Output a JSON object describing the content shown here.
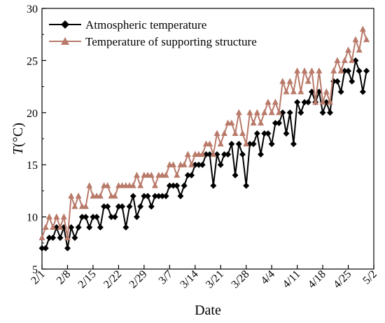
{
  "chart_data": {
    "type": "line",
    "xlabel": "Date",
    "ylabel_main": "T",
    "ylabel_unit": "(°C)",
    "ylim": [
      5,
      30
    ],
    "yticks": [
      "5",
      "10",
      "15",
      "20",
      "25",
      "30"
    ],
    "xlim": [
      "2/1",
      "5/2"
    ],
    "xticks": [
      "2/1",
      "2/8",
      "2/15",
      "2/22",
      "2/29",
      "3/7",
      "3/14",
      "3/21",
      "3/28",
      "4/4",
      "4/11",
      "4/18",
      "4/25",
      "5/2"
    ],
    "grid": false,
    "legend_position": "top-left",
    "series": [
      {
        "name": "Atmospheric temperature",
        "color": "#000000",
        "marker": "diamond",
        "x": [
          "2/1",
          "2/2",
          "2/3",
          "2/4",
          "2/5",
          "2/6",
          "2/7",
          "2/8",
          "2/9",
          "2/10",
          "2/11",
          "2/12",
          "2/13",
          "2/14",
          "2/15",
          "2/16",
          "2/17",
          "2/18",
          "2/19",
          "2/20",
          "2/21",
          "2/22",
          "2/23",
          "2/24",
          "2/25",
          "2/26",
          "2/27",
          "2/28",
          "2/29",
          "3/1",
          "3/2",
          "3/3",
          "3/4",
          "3/5",
          "3/6",
          "3/7",
          "3/8",
          "3/9",
          "3/10",
          "3/11",
          "3/12",
          "3/13",
          "3/14",
          "3/15",
          "3/16",
          "3/17",
          "3/18",
          "3/19",
          "3/20",
          "3/21",
          "3/22",
          "3/23",
          "3/24",
          "3/25",
          "3/26",
          "3/27",
          "3/28",
          "3/29",
          "3/30",
          "3/31",
          "4/1",
          "4/2",
          "4/3",
          "4/4",
          "4/5",
          "4/6",
          "4/7",
          "4/8",
          "4/9",
          "4/10",
          "4/11",
          "4/12",
          "4/13",
          "4/14",
          "4/15",
          "4/16",
          "4/17",
          "4/18",
          "4/19",
          "4/20",
          "4/21",
          "4/22",
          "4/23",
          "4/24",
          "4/25",
          "4/26",
          "4/27",
          "4/28",
          "4/29",
          "4/30"
        ],
        "values": [
          7,
          7,
          8,
          8,
          9,
          8,
          9,
          7,
          9,
          8,
          9,
          10,
          10,
          9,
          10,
          10,
          9,
          11,
          11,
          10,
          10,
          11,
          11,
          9,
          11,
          12,
          10,
          11,
          12,
          12,
          11,
          12,
          12,
          12,
          12,
          13,
          13,
          13,
          12,
          13,
          14,
          14,
          15,
          15,
          15,
          16,
          16,
          13,
          16,
          15,
          16,
          16,
          17,
          14,
          17,
          16,
          13,
          17,
          17,
          18,
          16,
          18,
          18,
          17,
          19,
          19,
          20,
          18,
          20,
          17,
          21,
          20,
          21,
          21,
          22,
          21,
          22,
          20,
          21,
          20,
          23,
          23,
          22,
          24,
          24,
          23,
          25,
          24,
          22,
          24
        ]
      },
      {
        "name": "Temperature of supporting structure",
        "color": "#b97a6a",
        "marker": "triangle",
        "x": [
          "2/1",
          "2/2",
          "2/3",
          "2/4",
          "2/5",
          "2/6",
          "2/7",
          "2/8",
          "2/9",
          "2/10",
          "2/11",
          "2/12",
          "2/13",
          "2/14",
          "2/15",
          "2/16",
          "2/17",
          "2/18",
          "2/19",
          "2/20",
          "2/21",
          "2/22",
          "2/23",
          "2/24",
          "2/25",
          "2/26",
          "2/27",
          "2/28",
          "2/29",
          "3/1",
          "3/2",
          "3/3",
          "3/4",
          "3/5",
          "3/6",
          "3/7",
          "3/8",
          "3/9",
          "3/10",
          "3/11",
          "3/12",
          "3/13",
          "3/14",
          "3/15",
          "3/16",
          "3/17",
          "3/18",
          "3/19",
          "3/20",
          "3/21",
          "3/22",
          "3/23",
          "3/24",
          "3/25",
          "3/26",
          "3/27",
          "3/28",
          "3/29",
          "3/30",
          "3/31",
          "4/1",
          "4/2",
          "4/3",
          "4/4",
          "4/5",
          "4/6",
          "4/7",
          "4/8",
          "4/9",
          "4/10",
          "4/11",
          "4/12",
          "4/13",
          "4/14",
          "4/15",
          "4/16",
          "4/17",
          "4/18",
          "4/19",
          "4/20",
          "4/21",
          "4/22",
          "4/23",
          "4/24",
          "4/25",
          "4/26",
          "4/27",
          "4/28",
          "4/29",
          "4/30"
        ],
        "values": [
          8,
          9,
          10,
          9,
          10,
          9,
          10,
          8,
          12,
          11,
          12,
          11,
          11,
          13,
          12,
          12,
          12,
          13,
          13,
          12,
          12,
          13,
          13,
          13,
          13,
          13,
          14,
          13,
          14,
          14,
          14,
          13,
          14,
          14,
          14,
          15,
          15,
          14,
          15,
          15,
          16,
          15,
          16,
          16,
          16,
          17,
          17,
          16,
          18,
          17,
          18,
          19,
          19,
          18,
          20,
          18,
          17,
          20,
          19,
          20,
          19,
          20,
          21,
          20,
          21,
          20,
          23,
          22,
          23,
          22,
          24,
          22,
          24,
          23,
          24,
          21,
          24,
          21,
          22,
          21,
          24,
          25,
          24,
          25,
          26,
          25,
          27,
          26,
          28,
          27
        ]
      }
    ]
  }
}
